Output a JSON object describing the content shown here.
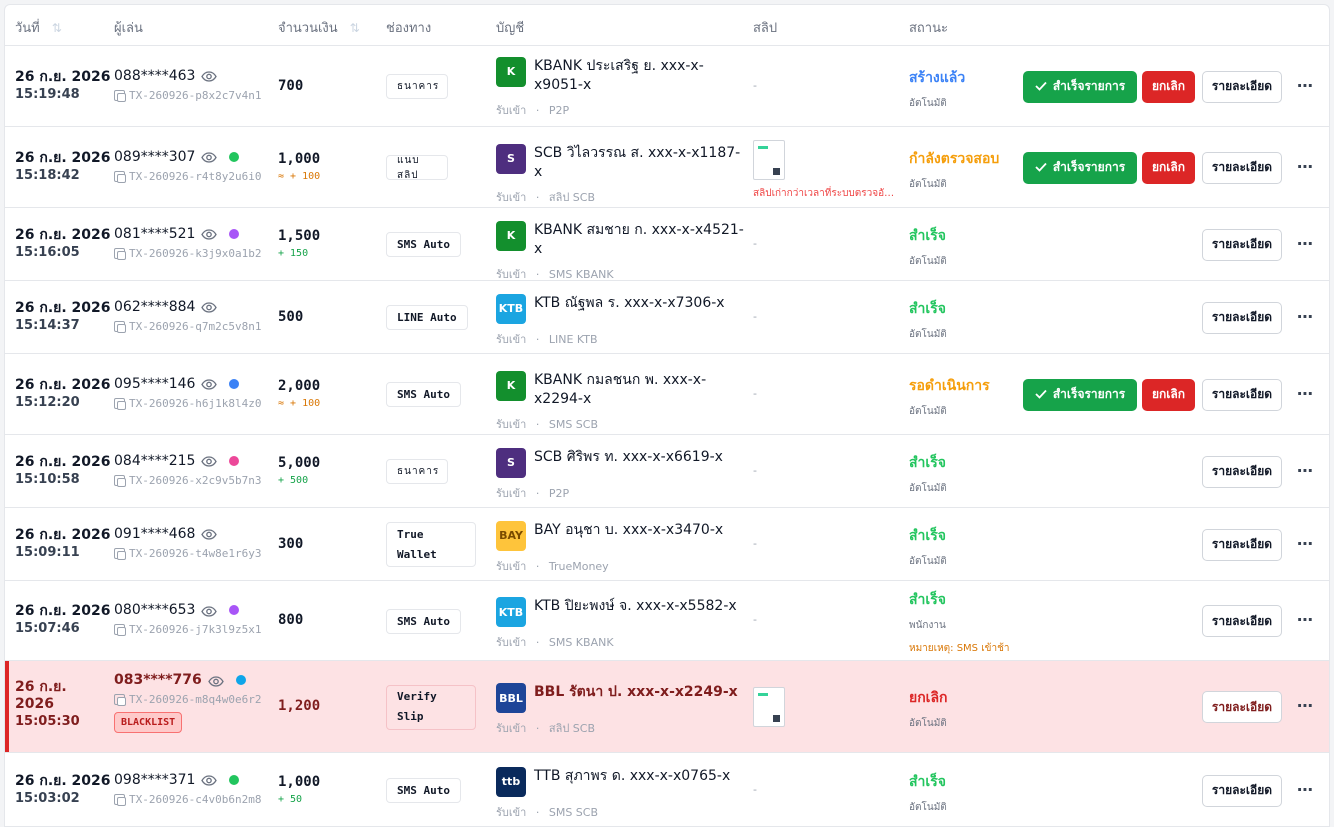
{
  "columns": {
    "date": "วันที่",
    "player": "ผู้เล่น",
    "amount": "จำนวนเงิน",
    "channel": "ช่องทาง",
    "account": "บัญชี",
    "slip": "สลิป",
    "status": "สถานะ",
    "sort_glyph": "⇅"
  },
  "actions": {
    "confirm": "สำเร็จรายการ",
    "cancel": "ยกเลิก",
    "detail": "รายละเอียด",
    "more": "⋯"
  },
  "bank_colors": {
    "KBANK": "#138f2d",
    "SCB": "#4e2e7f",
    "KTB": "#1ba5e1",
    "BAY": "#fec43b",
    "BBL": "#1e4598",
    "TTB": "#0a2a5c"
  },
  "status_colors": {
    "created": "#3b82f6",
    "checking": "#f59e0b",
    "success": "#22c55e",
    "pending": "#f59e0b",
    "cancelled": "#dc2626"
  },
  "rows": [
    {
      "date": "26 ก.ย. 2026",
      "time": "15:19:48",
      "phone": "088****463",
      "dot": "",
      "tx": "TX-260926-p8x2c7v4n1",
      "amount": "700",
      "bonus": "",
      "bonus_color": "",
      "channel": "ธนาคาร",
      "bank": "KBANK",
      "bank_logo_text": "K",
      "account": "KBANK ประเสริฐ ย. xxx-x-x9051-x",
      "direction": "รับเข้า",
      "sep": "·",
      "source": "P2P",
      "slip": "-",
      "slip_note": "",
      "status": "สร้างแล้ว",
      "status_key": "created",
      "status_by": "อัตโนมัติ",
      "status_note": "",
      "show_actions": true
    },
    {
      "date": "26 ก.ย. 2026",
      "time": "15:18:42",
      "phone": "089****307",
      "dot": "#22c55e",
      "tx": "TX-260926-r4t8y2u6i0",
      "amount": "1,000",
      "bonus": "≈ + 100",
      "bonus_color": "orange",
      "channel": "แนบสลิป",
      "bank": "SCB",
      "bank_logo_text": "S",
      "account": "SCB วิไลวรรณ ส. xxx-x-x1187-x",
      "direction": "รับเข้า",
      "sep": "·",
      "source": "สลิป SCB",
      "slip": "thumb",
      "slip_note": "สลิปเก่ากว่าเวลาที่ระบบตรวจอัตโนมัติ",
      "status": "กำลังตรวจสอบ",
      "status_key": "checking",
      "status_by": "อัตโนมัติ",
      "status_note": "",
      "show_actions": true
    },
    {
      "date": "26 ก.ย. 2026",
      "time": "15:16:05",
      "phone": "081****521",
      "dot": "#a855f7",
      "tx": "TX-260926-k3j9x0a1b2",
      "amount": "1,500",
      "bonus": "+ 150",
      "bonus_color": "green",
      "channel": "SMS Auto",
      "bank": "KBANK",
      "bank_logo_text": "K",
      "account": "KBANK สมชาย ก. xxx-x-x4521-x",
      "direction": "รับเข้า",
      "sep": "·",
      "source": "SMS KBANK",
      "slip": "-",
      "slip_note": "",
      "status": "สำเร็จ",
      "status_key": "success",
      "status_by": "อัตโนมัติ",
      "status_note": "",
      "show_actions": false
    },
    {
      "date": "26 ก.ย. 2026",
      "time": "15:14:37",
      "phone": "062****884",
      "dot": "",
      "tx": "TX-260926-q7m2c5v8n1",
      "amount": "500",
      "bonus": "",
      "bonus_color": "",
      "channel": "LINE Auto",
      "bank": "KTB",
      "bank_logo_text": "KTB",
      "account": "KTB ณัฐพล ร. xxx-x-x7306-x",
      "direction": "รับเข้า",
      "sep": "·",
      "source": "LINE KTB",
      "slip": "-",
      "slip_note": "",
      "status": "สำเร็จ",
      "status_key": "success",
      "status_by": "อัตโนมัติ",
      "status_note": "",
      "show_actions": false
    },
    {
      "date": "26 ก.ย. 2026",
      "time": "15:12:20",
      "phone": "095****146",
      "dot": "#3b82f6",
      "tx": "TX-260926-h6j1k8l4z0",
      "amount": "2,000",
      "bonus": "≈ + 100",
      "bonus_color": "orange",
      "channel": "SMS Auto",
      "bank": "KBANK",
      "bank_logo_text": "K",
      "account": "KBANK กมลชนก พ. xxx-x-x2294-x",
      "direction": "รับเข้า",
      "sep": "·",
      "source": "SMS SCB",
      "slip": "-",
      "slip_note": "",
      "status": "รอดำเนินการ",
      "status_key": "pending",
      "status_by": "อัตโนมัติ",
      "status_note": "",
      "show_actions": true
    },
    {
      "date": "26 ก.ย. 2026",
      "time": "15:10:58",
      "phone": "084****215",
      "dot": "#ec4899",
      "tx": "TX-260926-x2c9v5b7n3",
      "amount": "5,000",
      "bonus": "+ 500",
      "bonus_color": "green",
      "channel": "ธนาคาร",
      "bank": "SCB",
      "bank_logo_text": "S",
      "account": "SCB ศิริพร ท. xxx-x-x6619-x",
      "direction": "รับเข้า",
      "sep": "·",
      "source": "P2P",
      "slip": "-",
      "slip_note": "",
      "status": "สำเร็จ",
      "status_key": "success",
      "status_by": "อัตโนมัติ",
      "status_note": "",
      "show_actions": false
    },
    {
      "date": "26 ก.ย. 2026",
      "time": "15:09:11",
      "phone": "091****468",
      "dot": "",
      "tx": "TX-260926-t4w8e1r6y3",
      "amount": "300",
      "bonus": "",
      "bonus_color": "",
      "channel": "True Wallet",
      "bank": "BAY",
      "bank_logo_text": "BAY",
      "account": "BAY อนุชา บ. xxx-x-x3470-x",
      "direction": "รับเข้า",
      "sep": "·",
      "source": "TrueMoney",
      "slip": "-",
      "slip_note": "",
      "status": "สำเร็จ",
      "status_key": "success",
      "status_by": "อัตโนมัติ",
      "status_note": "",
      "show_actions": false
    },
    {
      "date": "26 ก.ย. 2026",
      "time": "15:07:46",
      "phone": "080****653",
      "dot": "#a855f7",
      "tx": "TX-260926-j7k3l9z5x1",
      "amount": "800",
      "bonus": "",
      "bonus_color": "",
      "channel": "SMS Auto",
      "bank": "KTB",
      "bank_logo_text": "KTB",
      "account": "KTB ปิยะพงษ์ จ. xxx-x-x5582-x",
      "direction": "รับเข้า",
      "sep": "·",
      "source": "SMS KBANK",
      "slip": "-",
      "slip_note": "",
      "status": "สำเร็จ",
      "status_key": "success",
      "status_by": "พนักงาน",
      "status_note": "หมายเหตุ: SMS เข้าช้า",
      "show_actions": false
    },
    {
      "date": "26 ก.ย. 2026",
      "time": "15:05:30",
      "phone": "083****776",
      "dot": "#0ea5e9",
      "tx": "TX-260926-m8q4w0e6r2",
      "blacklist": "BLACKLIST",
      "amount": "1,200",
      "bonus": "",
      "bonus_color": "",
      "channel": "Verify Slip",
      "bank": "BBL",
      "bank_logo_text": "BBL",
      "account": "BBL รัตนา ป. xxx-x-x2249-x",
      "direction": "รับเข้า",
      "sep": "·",
      "source": "สลิป SCB",
      "slip": "thumb",
      "slip_note": "",
      "status": "ยกเลิก",
      "status_key": "cancelled",
      "status_by": "อัตโนมัติ",
      "status_note": "",
      "show_actions": false
    },
    {
      "date": "26 ก.ย. 2026",
      "time": "15:03:02",
      "phone": "098****371",
      "dot": "#22c55e",
      "tx": "TX-260926-c4v0b6n2m8",
      "amount": "1,000",
      "bonus": "+ 50",
      "bonus_color": "green",
      "channel": "SMS Auto",
      "bank": "TTB",
      "bank_logo_text": "ttb",
      "account": "TTB สุภาพร ด. xxx-x-x0765-x",
      "direction": "รับเข้า",
      "sep": "·",
      "source": "SMS SCB",
      "slip": "-",
      "slip_note": "",
      "status": "สำเร็จ",
      "status_key": "success",
      "status_by": "อัตโนมัติ",
      "status_note": "",
      "show_actions": false
    }
  ]
}
